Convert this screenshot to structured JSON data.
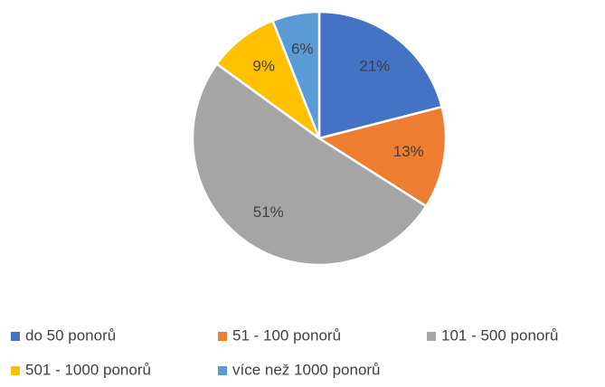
{
  "chart_data": {
    "type": "pie",
    "categories": [
      "do 50 ponorů",
      "51 - 100 ponorů",
      "101 - 500 ponorů",
      "501 - 1000 ponorů",
      "více než 1000 ponorů"
    ],
    "values": [
      21,
      13,
      51,
      9,
      6
    ],
    "value_labels": [
      "21%",
      "13%",
      "51%",
      "9%",
      "6%"
    ],
    "colors": [
      "#4472c4",
      "#ed7d31",
      "#a5a5a5",
      "#ffc000",
      "#5b9bd5"
    ],
    "legend": "bottom"
  }
}
